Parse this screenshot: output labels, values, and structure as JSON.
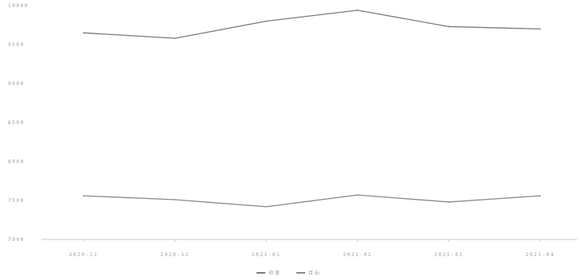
{
  "chart_data": {
    "type": "line",
    "x": [
      "2020-11",
      "2020-12",
      "2021-01",
      "2021-02",
      "2021-03",
      "2021-04"
    ],
    "series": [
      {
        "name": "销量",
        "color": "#7b7b7b",
        "values": [
          9650,
          9580,
          9800,
          9940,
          9730,
          9700
        ]
      },
      {
        "name": "目标",
        "color": "#8a8a8a",
        "values": [
          7560,
          7510,
          7420,
          7570,
          7480,
          7560
        ]
      }
    ],
    "y_ticks": [
      "10000",
      "9500",
      "9000",
      "8500",
      "8000",
      "7500",
      "7000"
    ],
    "ylim": [
      7000,
      10000
    ],
    "grid": false,
    "legend": "bottom-center"
  }
}
